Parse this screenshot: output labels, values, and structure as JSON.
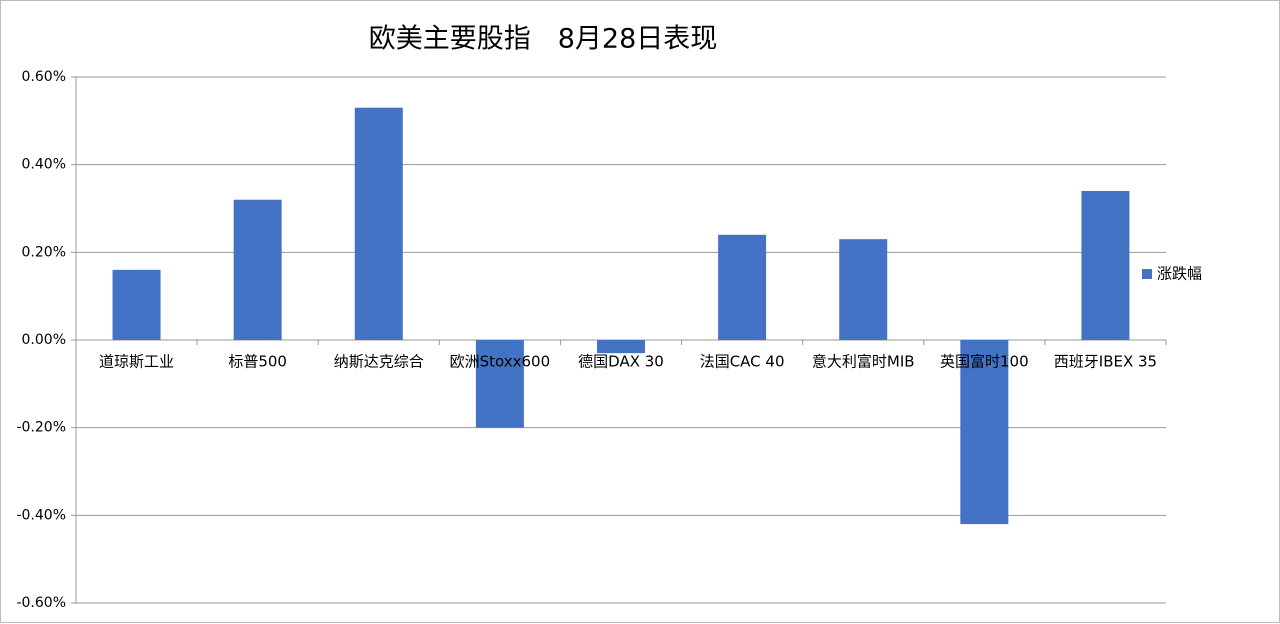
{
  "chart_data": {
    "type": "bar",
    "title": "欧美主要股指　8月28日表现",
    "categories": [
      "道琼斯工业",
      "标普500",
      "纳斯达克综合",
      "欧洲Stoxx600",
      "德国DAX 30",
      "法国CAC 40",
      "意大利富时MIB",
      "英国富时100",
      "西班牙IBEX 35"
    ],
    "series": [
      {
        "name": "涨跌幅",
        "color": "#4472c4",
        "values": [
          0.16,
          0.32,
          0.53,
          -0.2,
          -0.03,
          0.24,
          0.23,
          -0.42,
          0.34
        ]
      }
    ],
    "ylim": [
      -0.6,
      0.6
    ],
    "yticks": [
      {
        "value": -0.6,
        "label": "-0.60%"
      },
      {
        "value": -0.4,
        "label": "-0.40%"
      },
      {
        "value": -0.2,
        "label": "-0.20%"
      },
      {
        "value": 0,
        "label": "0.00%"
      },
      {
        "value": 0.2,
        "label": "0.20%"
      },
      {
        "value": 0.4,
        "label": "0.40%"
      },
      {
        "value": 0.6,
        "label": "0.60%"
      }
    ],
    "grid": true,
    "legend": "right"
  }
}
